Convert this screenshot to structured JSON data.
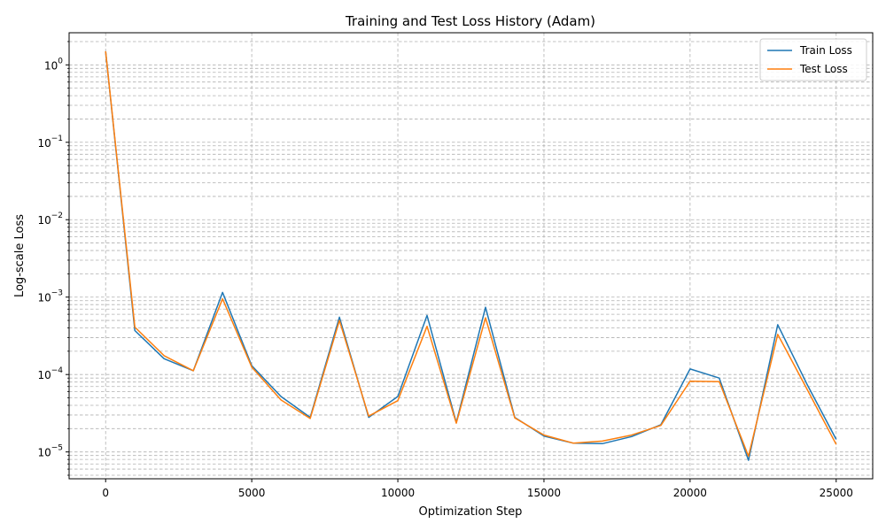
{
  "chart_data": {
    "type": "line",
    "title": "Training and Test Loss History (Adam)",
    "xlabel": "Optimization Step",
    "ylabel": "Log-scale Loss",
    "yscale": "log",
    "xlim": [
      -1250,
      26250
    ],
    "ylim": [
      4.5e-06,
      2.6
    ],
    "x_ticks": [
      0,
      5000,
      10000,
      15000,
      20000,
      25000
    ],
    "x_tick_labels": [
      "0",
      "5000",
      "10000",
      "15000",
      "20000",
      "25000"
    ],
    "y_ticks": [
      1e-05,
      0.0001,
      0.001,
      0.01,
      0.1,
      1
    ],
    "y_tick_labels": [
      {
        "base": "10",
        "exp": "−5"
      },
      {
        "base": "10",
        "exp": "−4"
      },
      {
        "base": "10",
        "exp": "−3"
      },
      {
        "base": "10",
        "exp": "−2"
      },
      {
        "base": "10",
        "exp": "−1"
      },
      {
        "base": "10",
        "exp": "0"
      }
    ],
    "grid": "major and minor, dashed",
    "legend_position": "top-right",
    "x": [
      0,
      1000,
      2000,
      3000,
      4000,
      5000,
      6000,
      7000,
      8000,
      9000,
      10000,
      11000,
      12000,
      13000,
      14000,
      15000,
      16000,
      17000,
      18000,
      19000,
      20000,
      21000,
      22000,
      23000,
      24000,
      25000
    ],
    "series": [
      {
        "name": "Train Loss",
        "color": "#1f77b4",
        "values": [
          1.5,
          0.00037,
          0.00016,
          0.000112,
          0.00115,
          0.00013,
          5.2e-05,
          2.8e-05,
          0.00055,
          2.8e-05,
          5.2e-05,
          0.00058,
          2.4e-05,
          0.00074,
          2.8e-05,
          1.6e-05,
          1.3e-05,
          1.28e-05,
          1.58e-05,
          2.25e-05,
          0.000118,
          9e-05,
          7.8e-06,
          0.00044,
          7.5e-05,
          1.45e-05
        ]
      },
      {
        "name": "Test Loss",
        "color": "#ff7f0e",
        "values": [
          1.5,
          0.00041,
          0.000175,
          0.000112,
          0.00095,
          0.000125,
          4.7e-05,
          2.7e-05,
          0.0005,
          2.9e-05,
          4.6e-05,
          0.00042,
          2.35e-05,
          0.00054,
          2.75e-05,
          1.65e-05,
          1.3e-05,
          1.38e-05,
          1.65e-05,
          2.2e-05,
          8.2e-05,
          8.1e-05,
          8.8e-06,
          0.00033,
          6.5e-05,
          1.25e-05
        ]
      }
    ]
  }
}
